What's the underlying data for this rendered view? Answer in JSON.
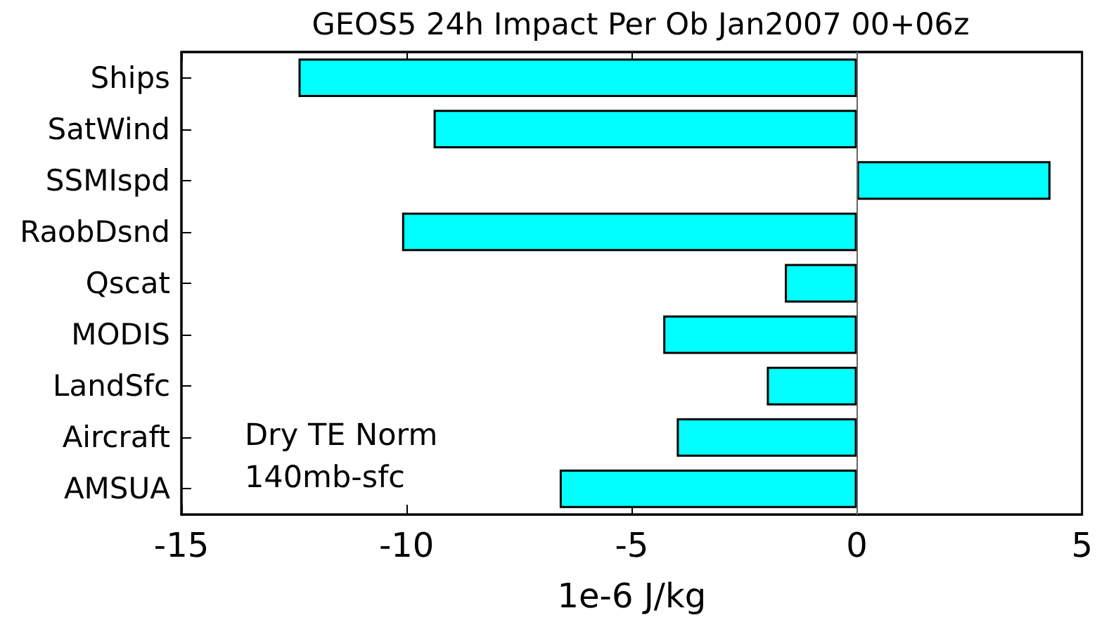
{
  "chart_data": {
    "type": "bar",
    "orientation": "horizontal",
    "title": "GEOS5 24h Impact Per Ob Jan2007 00+06z",
    "xlabel": "1e-6 J/kg",
    "categories": [
      "Ships",
      "SatWind",
      "SSMIspd",
      "RaobDsnd",
      "Qscat",
      "MODIS",
      "LandSfc",
      "Aircraft",
      "AMSUA"
    ],
    "values": [
      -12.4,
      -9.4,
      4.3,
      -10.1,
      -1.6,
      -4.3,
      -2.0,
      -4.0,
      -6.6
    ],
    "color": "#00ffff",
    "xlim": [
      -15,
      5
    ],
    "xticks": [
      -15,
      -10,
      -5,
      0,
      5
    ],
    "ref_lines": [
      {
        "axis": "x",
        "value": 0,
        "color": "#666666"
      }
    ],
    "annotations": [
      "Dry TE Norm",
      "140mb-sfc"
    ]
  }
}
